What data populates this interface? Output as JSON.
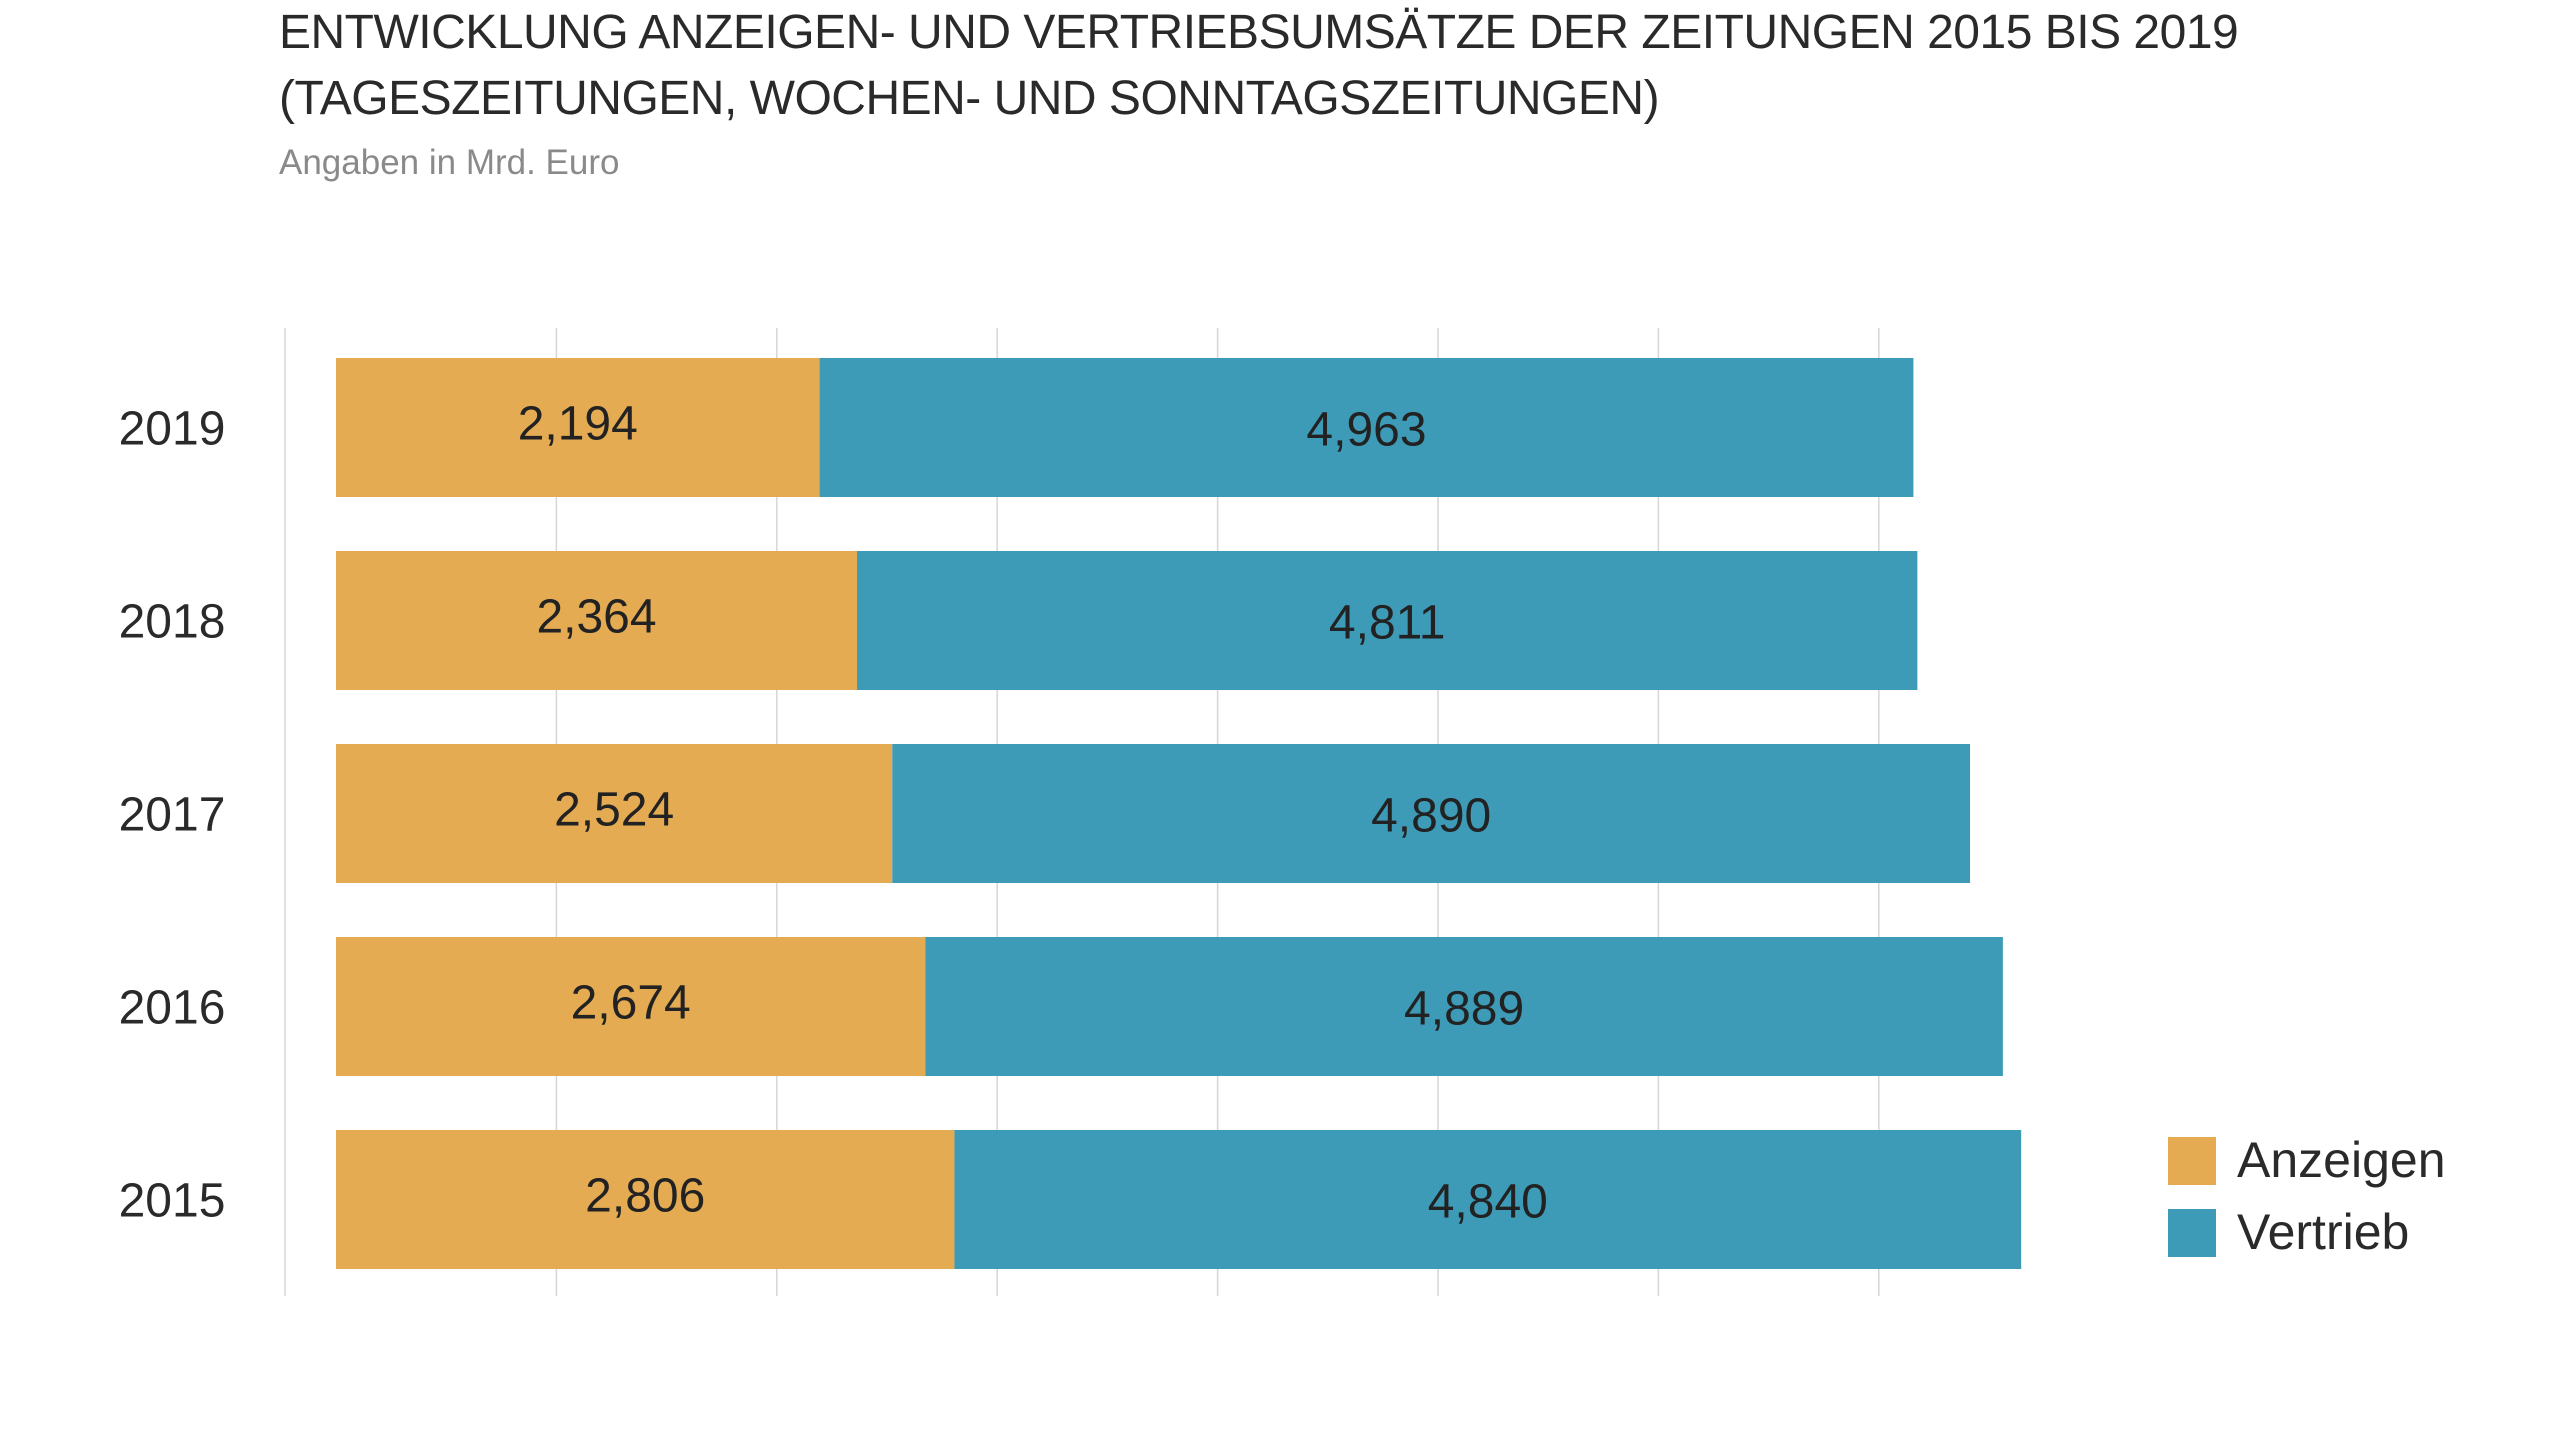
{
  "chart_data": {
    "type": "bar",
    "orientation": "horizontal",
    "stacked": true,
    "title_lines": [
      "ENTWICKLUNG ANZEIGEN- UND VERTRIEBSUMSÄTZE DER ZEITUNGEN 2015 BIS 2019",
      "(TAGESZEITUNGEN, WOCHEN- UND SONNTAGSZEITUNGEN)"
    ],
    "subtitle": "Angaben in Mrd. Euro",
    "categories": [
      "2019",
      "2018",
      "2017",
      "2016",
      "2015"
    ],
    "series": [
      {
        "name": "Anzeigen",
        "color": "#e4ab53",
        "values": [
          2.194,
          2.364,
          2.524,
          2.674,
          2.806
        ],
        "labels": [
          "2,194",
          "2,364",
          "2,524",
          "2,674",
          "2,806"
        ]
      },
      {
        "name": "Vertrieb",
        "color": "#3e9bb8",
        "values": [
          4.963,
          4.811,
          4.89,
          4.889,
          4.84
        ],
        "labels": [
          "4,963",
          "4,811",
          "4,890",
          "4,889",
          "4,840"
        ]
      }
    ],
    "xlim": [
      0,
      7.6
    ],
    "x_gridlines": [
      1,
      2,
      3,
      4,
      5,
      6,
      7
    ],
    "x_tick_labels_shown": false,
    "grid": true,
    "legend_position": "bottom-right"
  }
}
